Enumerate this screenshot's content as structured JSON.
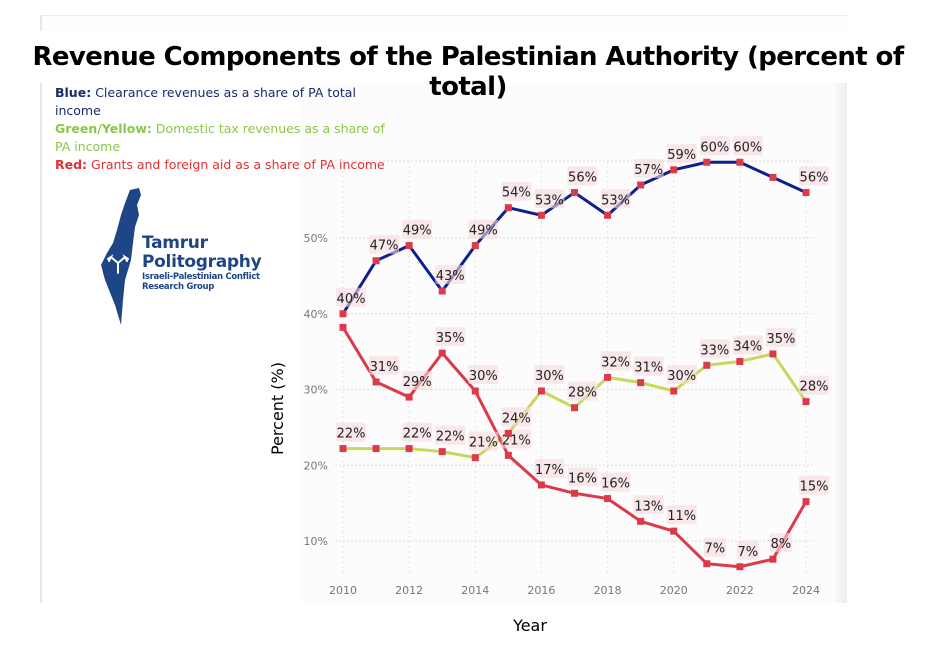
{
  "title": "Revenue Components of the Palestinian Authority (percent of total)",
  "legend_notes": {
    "blue": {
      "key": "Blue:",
      "text": "Clearance revenues as a share of PA total income"
    },
    "green": {
      "key": "Green/Yellow:",
      "text": "Domestic tax revenues as a share of PA income"
    },
    "red": {
      "key": "Red:",
      "text": "Grants and foreign aid as a share of PA income"
    }
  },
  "logo": {
    "name_line1": "Tamrur",
    "name_line2": "Politography",
    "subtitle_line1": "Israeli-Palestinian Conflict",
    "subtitle_line2": "Research Group"
  },
  "chart_data": {
    "type": "line",
    "title": "Revenue Components of the Palestinian Authority (percent of total)",
    "xlabel": "Year",
    "ylabel": "Percent (%)",
    "x": [
      2010,
      2011,
      2012,
      2013,
      2014,
      2015,
      2016,
      2017,
      2018,
      2019,
      2020,
      2021,
      2022,
      2023,
      2024
    ],
    "x_ticks": [
      2010,
      2012,
      2014,
      2016,
      2018,
      2020,
      2022,
      2024
    ],
    "y_ticks": [
      10,
      20,
      30,
      40,
      50
    ],
    "y_tick_labels": [
      "10%",
      "20%",
      "30%",
      "40%",
      "50%"
    ],
    "ylim": [
      5,
      62
    ],
    "xlim": [
      2010,
      2024
    ],
    "grid": true,
    "series": [
      {
        "name": "Clearance revenues",
        "color": "#0f1f8c",
        "marker_color": "#dc3a4b",
        "values": [
          40,
          47,
          49,
          43,
          49,
          54,
          53,
          56,
          53,
          57,
          59,
          60,
          60,
          58,
          56
        ],
        "labels": [
          "40%",
          "47%",
          "49%",
          "43%",
          "49%",
          "54%",
          "53%",
          "56%",
          "53%",
          "57%",
          "59%",
          "60%",
          "60%",
          "",
          "56%"
        ]
      },
      {
        "name": "Domestic tax revenues",
        "color": "#c5d95a",
        "marker_color": "#dc3a4b",
        "values": [
          22.2,
          22.2,
          22.2,
          21.8,
          21,
          24.2,
          29.8,
          27.6,
          31.6,
          30.9,
          29.8,
          33.2,
          33.7,
          34.7,
          28.4
        ],
        "labels": [
          "22%",
          "",
          "22%",
          "22%",
          "21%",
          "24%",
          "30%",
          "28%",
          "32%",
          "31%",
          "30%",
          "33%",
          "34%",
          "35%",
          "28%"
        ]
      },
      {
        "name": "Grants and foreign aid",
        "color": "#dc3a4b",
        "marker_color": "#dc3a4b",
        "values": [
          38.2,
          31,
          29,
          34.8,
          29.8,
          21.3,
          17.4,
          16.3,
          15.6,
          12.6,
          11.3,
          7,
          6.6,
          7.6,
          15.2
        ],
        "labels": [
          "",
          "31%",
          "29%",
          "35%",
          "30%",
          "21%",
          "17%",
          "16%",
          "16%",
          "13%",
          "11%",
          "7%",
          "7%",
          "8%",
          "15%"
        ]
      }
    ]
  }
}
